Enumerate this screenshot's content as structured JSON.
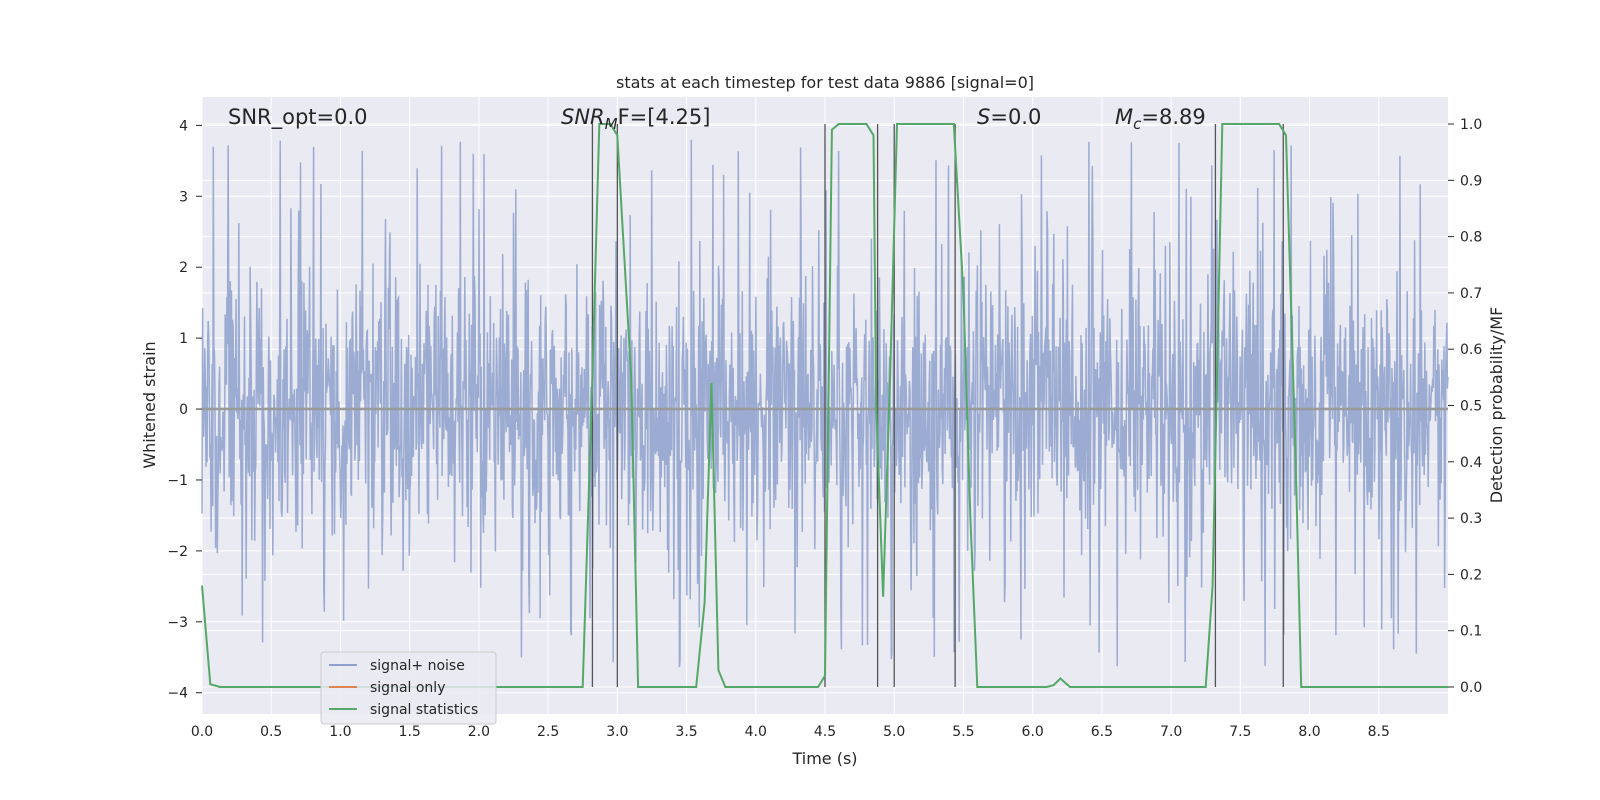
{
  "chart_data": {
    "type": "line",
    "title": "stats at each timestep for test data 9886 [signal=0]",
    "xlabel": "Time (s)",
    "ylabel_left": "Whitened strain",
    "ylabel_right": "Detection probability/MF",
    "xlim": [
      0,
      9.0
    ],
    "ylim_left": [
      -4.3,
      4.4
    ],
    "ylim_right": [
      -0.048,
      1.048
    ],
    "x_ticks": [
      "0.0",
      "0.5",
      "1.0",
      "1.5",
      "2.0",
      "2.5",
      "3.0",
      "3.5",
      "4.0",
      "4.5",
      "5.0",
      "5.5",
      "6.0",
      "6.5",
      "7.0",
      "7.5",
      "8.0",
      "8.5"
    ],
    "y_left_ticks": [
      "4",
      "3",
      "2",
      "1",
      "0",
      "−1",
      "−2",
      "−3",
      "−4"
    ],
    "y_right_ticks": [
      "1.0",
      "0.9",
      "0.8",
      "0.7",
      "0.6",
      "0.5",
      "0.4",
      "0.3",
      "0.2",
      "0.1",
      "0.0"
    ],
    "grid": true,
    "legend_position": "lower-left",
    "annotations": {
      "snr_opt": "SNR_opt=0.0",
      "snr_mf_main": "SNR",
      "snr_mf_sub": "M",
      "snr_mf_rest": "F=[4.25]",
      "s_main": "S",
      "s_rest": "=0.0",
      "mc_main": "M",
      "mc_sub": "c",
      "mc_rest": "=8.89"
    },
    "series": [
      {
        "name": "signal+ noise",
        "color": "#8da0cb",
        "description": "whitened strain noise, roughly symmetric about 0 with peaks up to about ±4",
        "envelope_typical": 1.6,
        "envelope_max": 4.0
      },
      {
        "name": "signal only",
        "color": "#dd8452",
        "x": [
          0,
          9.0
        ],
        "y": [
          0,
          0
        ]
      },
      {
        "name": "signal statistics",
        "color": "#55a868",
        "x": [
          0.0,
          0.06,
          0.13,
          0.2,
          0.4,
          0.6,
          0.8,
          1.0,
          1.5,
          2.0,
          2.4,
          2.5,
          2.75,
          2.82,
          2.87,
          2.95,
          3.0,
          3.1,
          3.15,
          3.2,
          3.3,
          3.5,
          3.57,
          3.63,
          3.68,
          3.73,
          3.78,
          3.85,
          4.0,
          4.2,
          4.45,
          4.5,
          4.55,
          4.6,
          4.7,
          4.8,
          4.85,
          4.87,
          4.92,
          4.97,
          5.02,
          5.07,
          5.15,
          5.3,
          5.43,
          5.5,
          5.55,
          5.6,
          5.7,
          6.0,
          6.1,
          6.15,
          6.2,
          6.27,
          6.3,
          6.6,
          7.0,
          7.25,
          7.3,
          7.37,
          7.5,
          7.7,
          7.78,
          7.83,
          7.9,
          7.94,
          8.0,
          8.5,
          9.0
        ],
        "y": [
          0.18,
          0.005,
          0.0,
          0.0,
          0.0,
          0.0,
          0.0,
          0.0,
          0.0,
          0.0,
          0.0,
          0.0,
          0.0,
          0.55,
          1.0,
          1.0,
          0.98,
          0.55,
          0.0,
          0.0,
          0.0,
          0.0,
          0.0,
          0.15,
          0.54,
          0.03,
          0.0,
          0.0,
          0.0,
          0.0,
          0.0,
          0.02,
          0.99,
          1.0,
          1.0,
          1.0,
          0.98,
          0.5,
          0.16,
          0.55,
          1.0,
          1.0,
          1.0,
          1.0,
          1.0,
          0.7,
          0.3,
          0.0,
          0.0,
          0.0,
          0.0,
          0.003,
          0.015,
          0.0,
          0.0,
          0.0,
          0.0,
          0.0,
          0.18,
          1.0,
          1.0,
          1.0,
          1.0,
          0.98,
          0.4,
          0.0,
          0.0,
          0.0,
          0.0
        ]
      }
    ],
    "detection_markers_x": [
      2.82,
      3.0,
      4.5,
      4.88,
      5.0,
      5.44,
      7.32,
      7.81
    ]
  }
}
